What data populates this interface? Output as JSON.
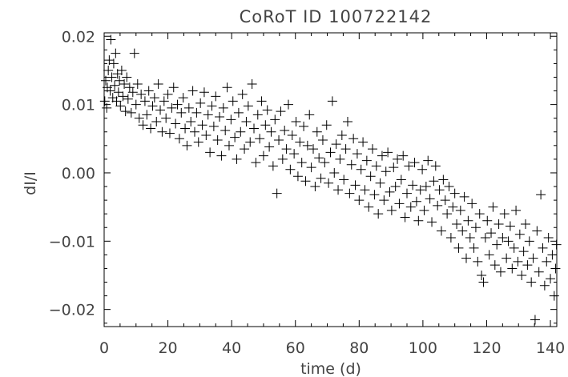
{
  "chart_data": {
    "type": "scatter",
    "title": "CoRoT ID 100722142",
    "xlabel": "time (d)",
    "ylabel": "dI/I",
    "xlim": [
      0,
      142
    ],
    "ylim": [
      -0.0225,
      0.0205
    ],
    "x_ticks": [
      {
        "value": 0,
        "label": "0"
      },
      {
        "value": 20,
        "label": "20"
      },
      {
        "value": 40,
        "label": "40"
      },
      {
        "value": 60,
        "label": "60"
      },
      {
        "value": 80,
        "label": "80"
      },
      {
        "value": 100,
        "label": "100"
      },
      {
        "value": 120,
        "label": "120"
      },
      {
        "value": 140,
        "label": "140"
      }
    ],
    "y_ticks": [
      {
        "value": 0.02,
        "label": "0.02"
      },
      {
        "value": 0.01,
        "label": "0.01"
      },
      {
        "value": 0.0,
        "label": "0.00"
      },
      {
        "value": -0.01,
        "label": "−0.01"
      },
      {
        "value": -0.02,
        "label": "−0.02"
      }
    ],
    "marker": "plus",
    "color": "#000000",
    "grid": false,
    "legend": "none",
    "series": [
      {
        "points": [
          [
            0.2,
            0.0105
          ],
          [
            0.5,
            0.0135
          ],
          [
            0.8,
            0.0095
          ],
          [
            1.0,
            0.0125
          ],
          [
            1.3,
            0.015
          ],
          [
            1.6,
            0.0165
          ],
          [
            1.9,
            0.012
          ],
          [
            2.1,
            0.0195
          ],
          [
            2.4,
            0.014
          ],
          [
            2.7,
            0.011
          ],
          [
            3.0,
            0.016
          ],
          [
            3.3,
            0.0128
          ],
          [
            3.6,
            0.0175
          ],
          [
            3.9,
            0.0105
          ],
          [
            4.2,
            0.0145
          ],
          [
            4.5,
            0.0118
          ],
          [
            4.8,
            0.0135
          ],
          [
            5.1,
            0.0098
          ],
          [
            5.5,
            0.015
          ],
          [
            5.9,
            0.0112
          ],
          [
            6.3,
            0.013
          ],
          [
            6.7,
            0.009
          ],
          [
            7.1,
            0.014
          ],
          [
            7.5,
            0.0108
          ],
          [
            8.0,
            0.0125
          ],
          [
            8.5,
            0.0088
          ],
          [
            9.0,
            0.0118
          ],
          [
            9.5,
            0.0175
          ],
          [
            10.0,
            0.01
          ],
          [
            10.5,
            0.013
          ],
          [
            11.0,
            0.008
          ],
          [
            11.6,
            0.0115
          ],
          [
            12.2,
            0.007
          ],
          [
            12.8,
            0.0105
          ],
          [
            13.4,
            0.0085
          ],
          [
            14.0,
            0.012
          ],
          [
            14.6,
            0.0065
          ],
          [
            15.2,
            0.0098
          ],
          [
            15.8,
            0.011
          ],
          [
            16.4,
            0.0075
          ],
          [
            17.0,
            0.013
          ],
          [
            17.6,
            0.0092
          ],
          [
            18.2,
            0.006
          ],
          [
            18.8,
            0.0105
          ],
          [
            19.4,
            0.008
          ],
          [
            20.0,
            0.0115
          ],
          [
            20.6,
            0.0058
          ],
          [
            21.2,
            0.0095
          ],
          [
            21.8,
            0.0125
          ],
          [
            22.4,
            0.0072
          ],
          [
            23.0,
            0.01
          ],
          [
            23.6,
            0.005
          ],
          [
            24.2,
            0.0088
          ],
          [
            24.8,
            0.011
          ],
          [
            25.4,
            0.0065
          ],
          [
            26.0,
            0.004
          ],
          [
            26.6,
            0.0095
          ],
          [
            27.2,
            0.0075
          ],
          [
            27.8,
            0.012
          ],
          [
            28.4,
            0.006
          ],
          [
            29.0,
            0.0088
          ],
          [
            29.6,
            0.0045
          ],
          [
            30.2,
            0.0102
          ],
          [
            30.8,
            0.007
          ],
          [
            31.4,
            0.0118
          ],
          [
            32.0,
            0.0055
          ],
          [
            32.6,
            0.0085
          ],
          [
            33.2,
            0.003
          ],
          [
            33.8,
            0.0098
          ],
          [
            34.4,
            0.0068
          ],
          [
            35.0,
            0.0112
          ],
          [
            35.6,
            0.0048
          ],
          [
            36.2,
            0.0082
          ],
          [
            36.8,
            0.0025
          ],
          [
            37.4,
            0.0095
          ],
          [
            38.0,
            0.0062
          ],
          [
            38.6,
            0.0125
          ],
          [
            39.2,
            0.004
          ],
          [
            39.8,
            0.0078
          ],
          [
            40.4,
            0.0105
          ],
          [
            41.0,
            0.0052
          ],
          [
            41.6,
            0.002
          ],
          [
            42.2,
            0.0088
          ],
          [
            42.8,
            0.006
          ],
          [
            43.4,
            0.0115
          ],
          [
            44.0,
            0.0035
          ],
          [
            44.6,
            0.0075
          ],
          [
            45.2,
            0.0098
          ],
          [
            45.8,
            0.0045
          ],
          [
            46.4,
            0.013
          ],
          [
            47.0,
            0.0065
          ],
          [
            47.6,
            0.0015
          ],
          [
            48.2,
            0.0085
          ],
          [
            48.8,
            0.005
          ],
          [
            49.4,
            0.0105
          ],
          [
            50.0,
            0.0025
          ],
          [
            50.6,
            0.007
          ],
          [
            51.2,
            0.0092
          ],
          [
            51.8,
            0.0038
          ],
          [
            52.4,
            0.006
          ],
          [
            53.0,
            0.001
          ],
          [
            53.6,
            0.0078
          ],
          [
            54.2,
            -0.003
          ],
          [
            54.8,
            0.0048
          ],
          [
            55.4,
            0.009
          ],
          [
            56.0,
            0.002
          ],
          [
            56.6,
            0.0062
          ],
          [
            57.2,
            0.0035
          ],
          [
            57.8,
            0.01
          ],
          [
            58.4,
            0.0005
          ],
          [
            59.0,
            0.0055
          ],
          [
            59.6,
            0.0028
          ],
          [
            60.2,
            0.0075
          ],
          [
            60.8,
            -0.0005
          ],
          [
            61.4,
            0.0045
          ],
          [
            62.0,
            0.0015
          ],
          [
            62.6,
            0.0068
          ],
          [
            63.2,
            -0.0012
          ],
          [
            63.8,
            0.004
          ],
          [
            64.4,
            0.0085
          ],
          [
            65.0,
            0.0008
          ],
          [
            65.6,
            0.0035
          ],
          [
            66.2,
            -0.002
          ],
          [
            66.8,
            0.006
          ],
          [
            67.4,
            0.0022
          ],
          [
            68.0,
            -0.0008
          ],
          [
            68.6,
            0.0048
          ],
          [
            69.2,
            0.0015
          ],
          [
            69.8,
            0.007
          ],
          [
            70.4,
            -0.0015
          ],
          [
            71.0,
            0.003
          ],
          [
            71.6,
            0.0105
          ],
          [
            72.2,
            0.0
          ],
          [
            72.8,
            0.0042
          ],
          [
            73.4,
            -0.0025
          ],
          [
            74.0,
            0.002
          ],
          [
            74.6,
            0.0055
          ],
          [
            75.2,
            -0.001
          ],
          [
            75.8,
            0.0035
          ],
          [
            76.4,
            0.0075
          ],
          [
            77.0,
            -0.003
          ],
          [
            77.6,
            0.0012
          ],
          [
            78.2,
            0.005
          ],
          [
            78.8,
            -0.0018
          ],
          [
            79.4,
            0.0028
          ],
          [
            80.0,
            -0.004
          ],
          [
            80.6,
            0.0005
          ],
          [
            81.2,
            0.0045
          ],
          [
            81.8,
            -0.0025
          ],
          [
            82.4,
            0.0018
          ],
          [
            83.0,
            -0.005
          ],
          [
            83.6,
            -0.0005
          ],
          [
            84.2,
            0.0035
          ],
          [
            84.8,
            -0.0032
          ],
          [
            85.4,
            0.001
          ],
          [
            86.0,
            -0.006
          ],
          [
            86.6,
            -0.0015
          ],
          [
            87.2,
            0.0025
          ],
          [
            87.8,
            -0.004
          ],
          [
            88.4,
            0.0002
          ],
          [
            89.0,
            0.003
          ],
          [
            89.6,
            -0.0028
          ],
          [
            90.2,
            -0.0055
          ],
          [
            90.8,
            0.0008
          ],
          [
            91.4,
            -0.002
          ],
          [
            92.0,
            0.002
          ],
          [
            92.6,
            -0.0045
          ],
          [
            93.2,
            -0.001
          ],
          [
            93.8,
            0.0025
          ],
          [
            94.4,
            -0.0065
          ],
          [
            95.0,
            -0.003
          ],
          [
            95.6,
            0.001
          ],
          [
            96.2,
            -0.005
          ],
          [
            96.8,
            -0.0018
          ],
          [
            97.4,
            0.0015
          ],
          [
            98.0,
            -0.0042
          ],
          [
            98.6,
            -0.007
          ],
          [
            99.2,
            -0.0025
          ],
          [
            99.8,
            0.0005
          ],
          [
            100.4,
            -0.0055
          ],
          [
            101.0,
            -0.002
          ],
          [
            101.6,
            0.0018
          ],
          [
            102.2,
            -0.0038
          ],
          [
            102.8,
            -0.0072
          ],
          [
            103.4,
            -0.0012
          ],
          [
            104.0,
            0.001
          ],
          [
            104.6,
            -0.0048
          ],
          [
            105.2,
            -0.0025
          ],
          [
            105.8,
            -0.0085
          ],
          [
            106.4,
            -0.001
          ],
          [
            107.0,
            -0.004
          ],
          [
            107.6,
            -0.006
          ],
          [
            108.2,
            -0.002
          ],
          [
            108.8,
            -0.0095
          ],
          [
            109.4,
            -0.005
          ],
          [
            110.0,
            -0.003
          ],
          [
            110.6,
            -0.0075
          ],
          [
            111.2,
            -0.011
          ],
          [
            111.8,
            -0.0055
          ],
          [
            112.4,
            -0.0085
          ],
          [
            113.0,
            -0.0035
          ],
          [
            113.6,
            -0.0125
          ],
          [
            114.2,
            -0.007
          ],
          [
            114.8,
            -0.0095
          ],
          [
            115.4,
            -0.0045
          ],
          [
            116.0,
            -0.011
          ],
          [
            116.6,
            -0.008
          ],
          [
            117.2,
            -0.013
          ],
          [
            117.8,
            -0.006
          ],
          [
            118.4,
            -0.015
          ],
          [
            119.0,
            -0.016
          ],
          [
            119.6,
            -0.0095
          ],
          [
            120.2,
            -0.007
          ],
          [
            120.8,
            -0.012
          ],
          [
            121.4,
            -0.0088
          ],
          [
            122.0,
            -0.005
          ],
          [
            122.6,
            -0.0135
          ],
          [
            123.2,
            -0.0105
          ],
          [
            123.8,
            -0.0075
          ],
          [
            124.4,
            -0.0145
          ],
          [
            125.0,
            -0.0095
          ],
          [
            125.6,
            -0.006
          ],
          [
            126.2,
            -0.0125
          ],
          [
            126.8,
            -0.01
          ],
          [
            127.4,
            -0.0078
          ],
          [
            128.0,
            -0.014
          ],
          [
            128.6,
            -0.011
          ],
          [
            129.2,
            -0.0055
          ],
          [
            129.8,
            -0.013
          ],
          [
            130.4,
            -0.009
          ],
          [
            131.0,
            -0.015
          ],
          [
            131.6,
            -0.0115
          ],
          [
            132.2,
            -0.0075
          ],
          [
            132.8,
            -0.0135
          ],
          [
            133.4,
            -0.01
          ],
          [
            134.0,
            -0.016
          ],
          [
            134.6,
            -0.0125
          ],
          [
            135.2,
            -0.0215
          ],
          [
            135.8,
            -0.0085
          ],
          [
            136.4,
            -0.0145
          ],
          [
            137.0,
            -0.0032
          ],
          [
            137.6,
            -0.011
          ],
          [
            138.2,
            -0.0165
          ],
          [
            138.8,
            -0.013
          ],
          [
            139.4,
            -0.0095
          ],
          [
            140.0,
            -0.0155
          ],
          [
            140.6,
            -0.012
          ],
          [
            141.2,
            -0.018
          ],
          [
            141.6,
            -0.014
          ],
          [
            141.9,
            -0.0105
          ]
        ]
      }
    ]
  }
}
